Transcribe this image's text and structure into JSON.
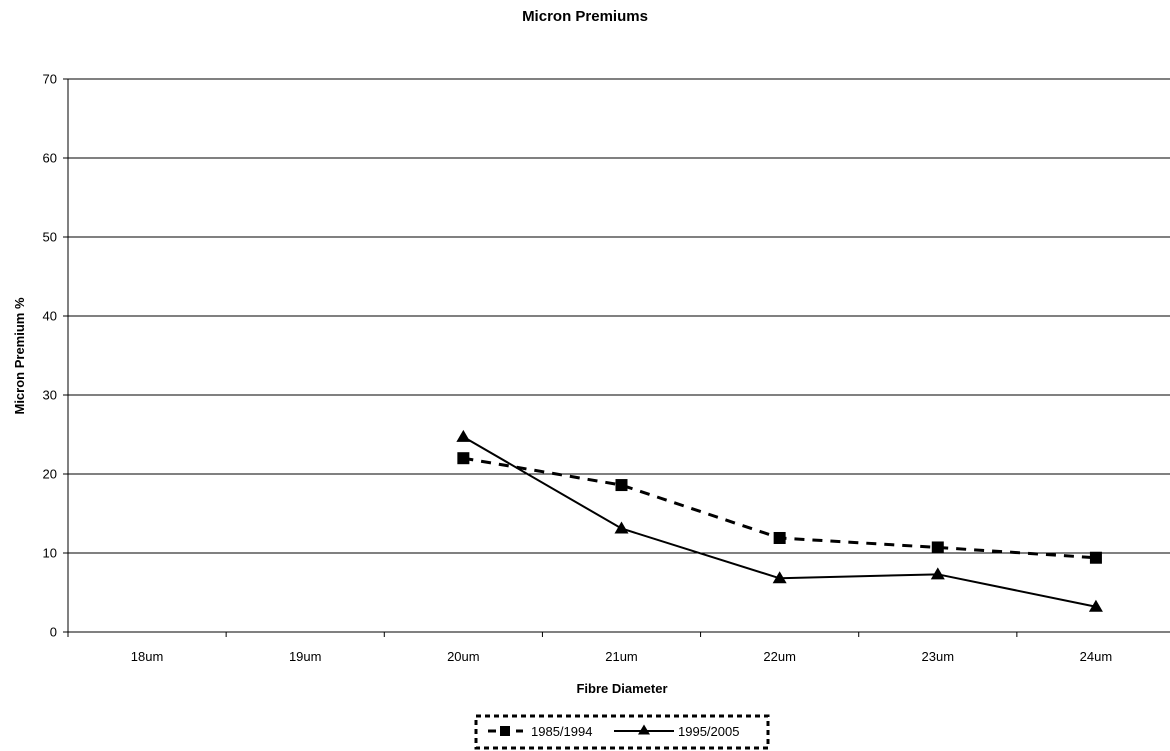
{
  "chart_data": {
    "type": "line",
    "title": "Micron Premiums",
    "xlabel": "Fibre Diameter",
    "ylabel": "Micron Premium %",
    "categories": [
      "18um",
      "19um",
      "20um",
      "21um",
      "22um",
      "23um",
      "24um"
    ],
    "ylim": [
      0,
      70
    ],
    "yticks": [
      0,
      10,
      20,
      30,
      40,
      50,
      60,
      70
    ],
    "grid": "horizontal",
    "legend_position": "bottom",
    "series": [
      {
        "name": "1985/1994",
        "marker": "square",
        "line_style": "dashed",
        "color": "#000000",
        "values": [
          null,
          null,
          22,
          18.6,
          11.9,
          10.7,
          9.4
        ]
      },
      {
        "name": "1995/2005",
        "marker": "triangle",
        "line_style": "solid",
        "color": "#000000",
        "values": [
          null,
          null,
          24.7,
          13.1,
          6.8,
          7.3,
          3.2
        ]
      }
    ]
  }
}
